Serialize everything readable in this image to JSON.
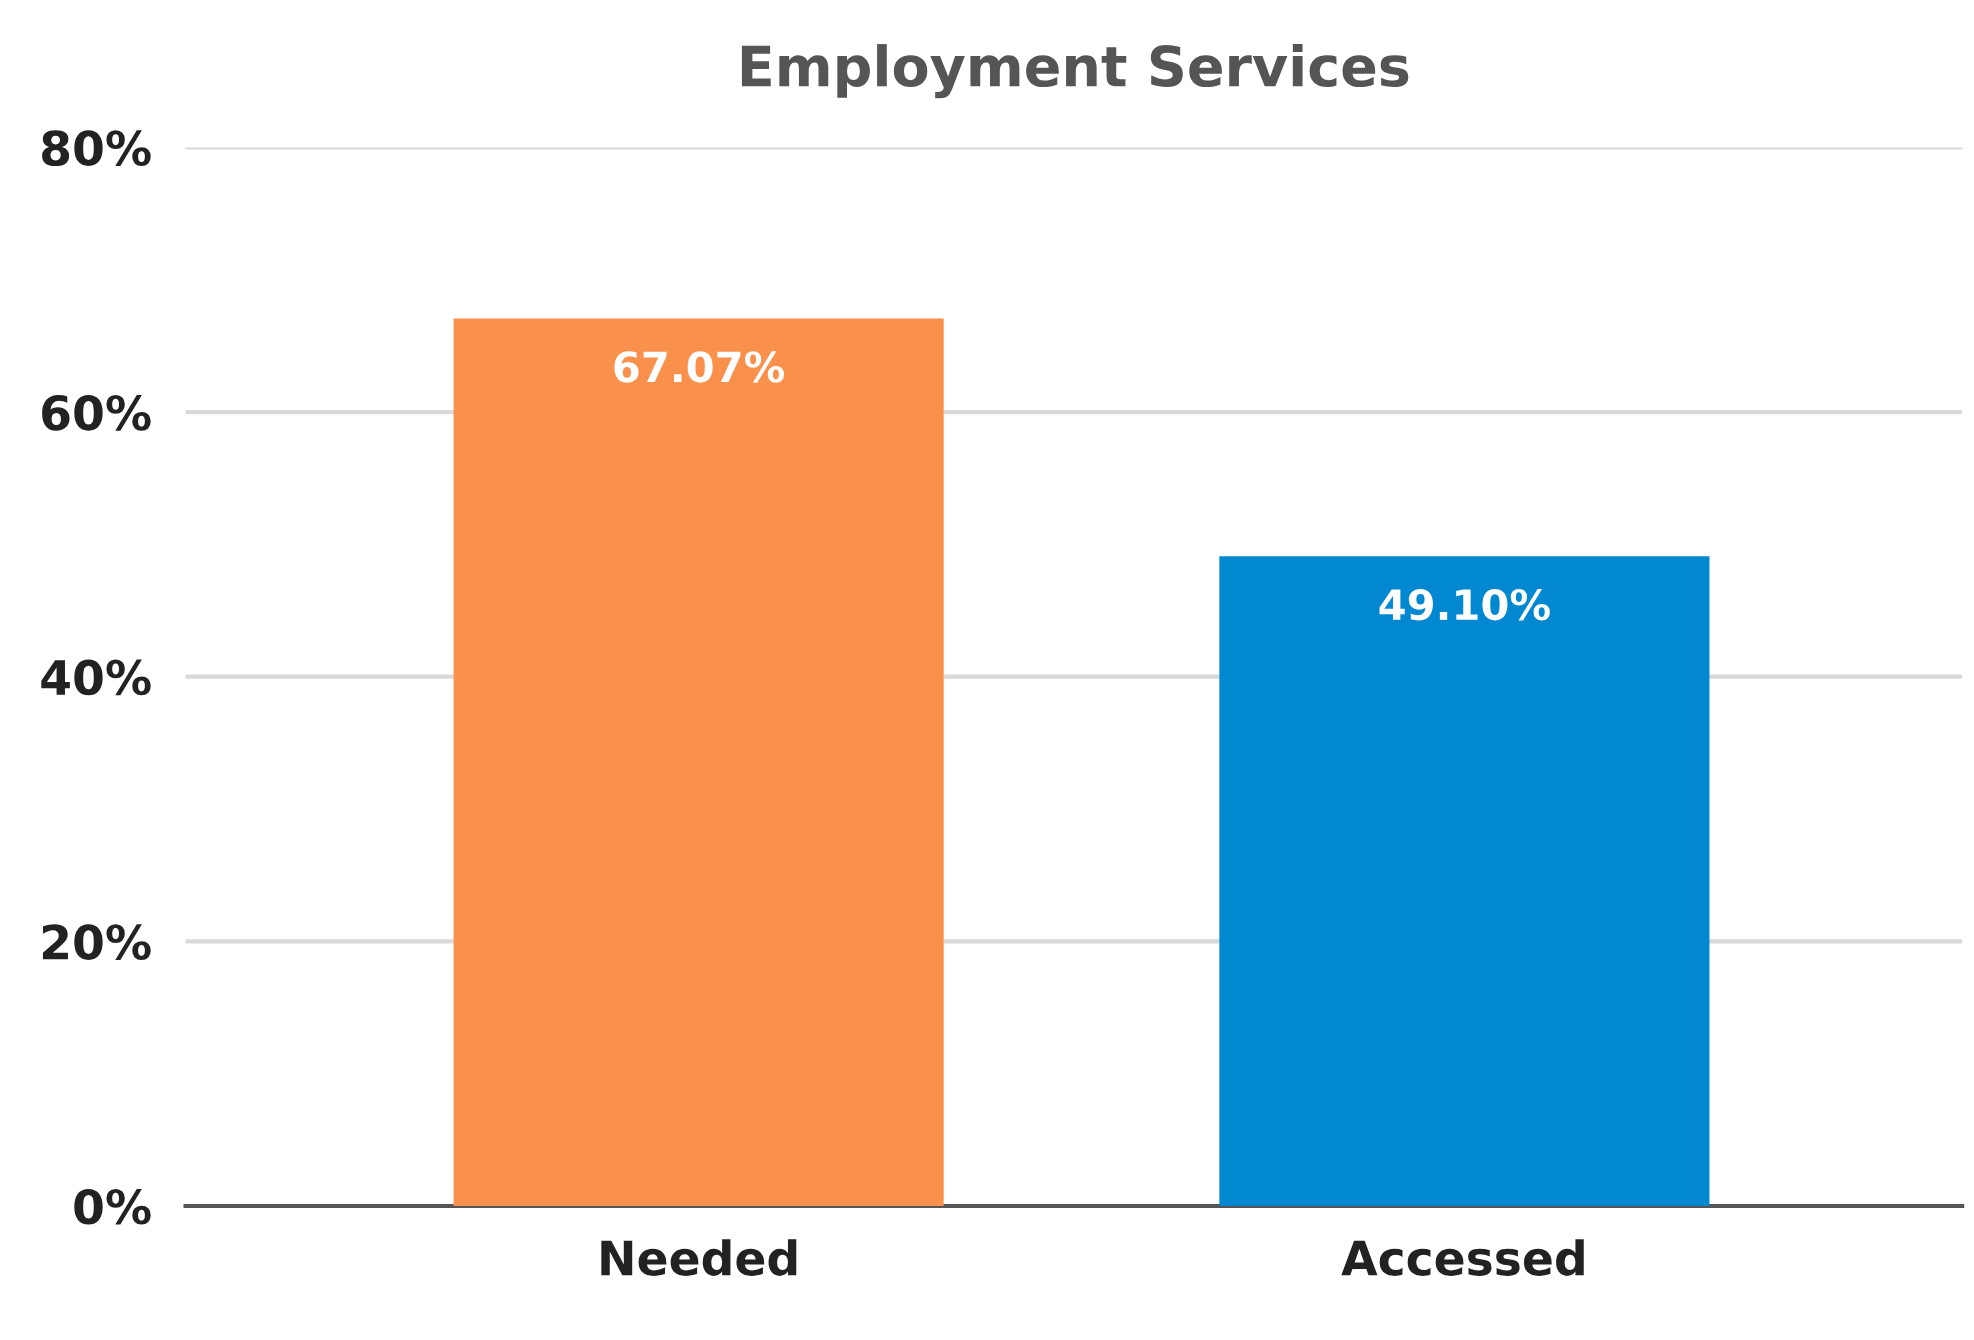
{
  "chart_data": {
    "type": "bar",
    "title": "Employment Services",
    "categories": [
      "Needed",
      "Accessed"
    ],
    "values": [
      67.07,
      49.1
    ],
    "colors": [
      "#f9914d",
      "#0288d1"
    ],
    "value_labels": [
      "67.07%",
      "49.10%"
    ],
    "ylim": [
      0,
      80
    ],
    "yticks": [
      {
        "value": 0,
        "label": "0%"
      },
      {
        "value": 20,
        "label": "20%"
      },
      {
        "value": 40,
        "label": "40%"
      },
      {
        "value": 60,
        "label": "60%"
      },
      {
        "value": 80,
        "label": "80%"
      }
    ],
    "grid": "y",
    "legend": false
  }
}
